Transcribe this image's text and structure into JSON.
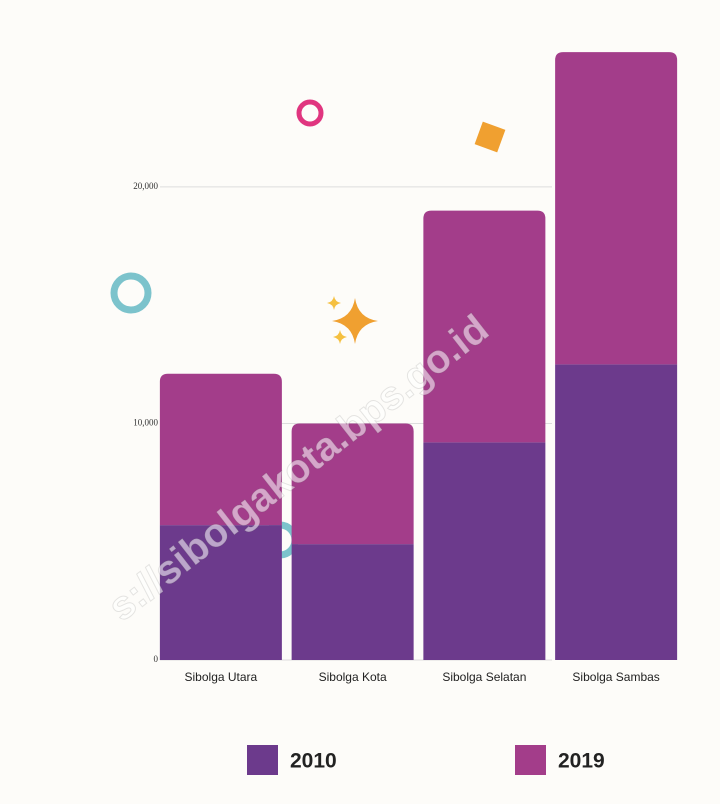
{
  "chart_data": {
    "type": "stacked_bar",
    "categories": [
      "Sibolga Utara",
      "Sibolga Kota",
      "Sibolga Selatan",
      "Sibolga Sambas"
    ],
    "series": [
      {
        "name": "2010",
        "color": "#6c3a8c",
        "values": [
          5700,
          4900,
          9200,
          12500
        ]
      },
      {
        "name": "2019",
        "color": "#a33d8a",
        "values": [
          6400,
          5100,
          9800,
          13200
        ]
      }
    ],
    "ylim": [
      0,
      26000
    ],
    "yticks": [
      0,
      {
        "value": 10000,
        "label": "10,000"
      },
      {
        "value": 20000,
        "label": "20,000"
      }
    ],
    "grid": true,
    "watermark": "s://sibolgakota.bps.go.id"
  }
}
